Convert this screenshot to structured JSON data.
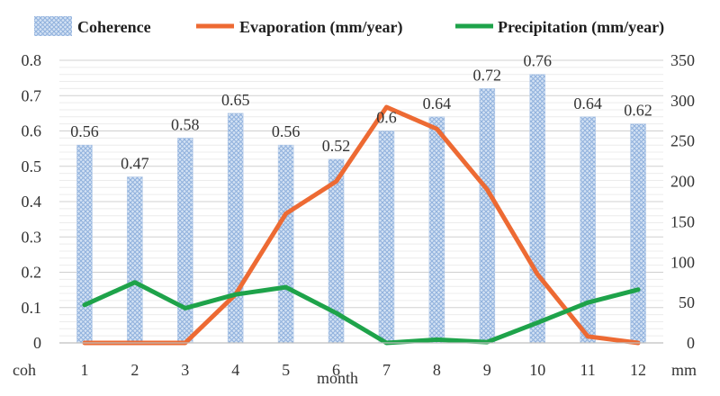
{
  "chart_data": {
    "type": "bar",
    "categories": [
      "1",
      "2",
      "3",
      "4",
      "5",
      "6",
      "7",
      "8",
      "9",
      "10",
      "11",
      "12"
    ],
    "xlabel": "month",
    "left_axis_unit": "coh",
    "right_axis_unit": "mm",
    "left_ylim": [
      0,
      0.8
    ],
    "left_ticks": [
      "0",
      "0.1",
      "0.2",
      "0.3",
      "0.4",
      "0.5",
      "0.6",
      "0.7",
      "0.8"
    ],
    "right_ylim": [
      0,
      350
    ],
    "right_ticks": [
      "0",
      "50",
      "100",
      "150",
      "200",
      "250",
      "300",
      "350"
    ],
    "grid": true,
    "legend_position": "top",
    "series": [
      {
        "name": "Coherence",
        "type": "bar",
        "axis": "left",
        "color": "#a9c4e6",
        "values": [
          0.56,
          0.47,
          0.58,
          0.65,
          0.56,
          0.52,
          0.6,
          0.64,
          0.72,
          0.76,
          0.64,
          0.62
        ],
        "labels": [
          "0.56",
          "0.47",
          "0.58",
          "0.65",
          "0.56",
          "0.52",
          "0.6",
          "0.64",
          "0.72",
          "0.76",
          "0.64",
          "0.62"
        ]
      },
      {
        "name": "Evaporation (mm/year)",
        "type": "line",
        "axis": "right",
        "color": "#ed6a33",
        "values": [
          0,
          0,
          0,
          60,
          160,
          200,
          292,
          265,
          190,
          85,
          8,
          0
        ]
      },
      {
        "name": "Precipitation (mm/year)",
        "type": "line",
        "axis": "right",
        "color": "#1ea34a",
        "values": [
          47,
          75,
          43,
          60,
          69,
          37,
          0,
          4,
          1,
          25,
          50,
          66
        ]
      }
    ]
  }
}
